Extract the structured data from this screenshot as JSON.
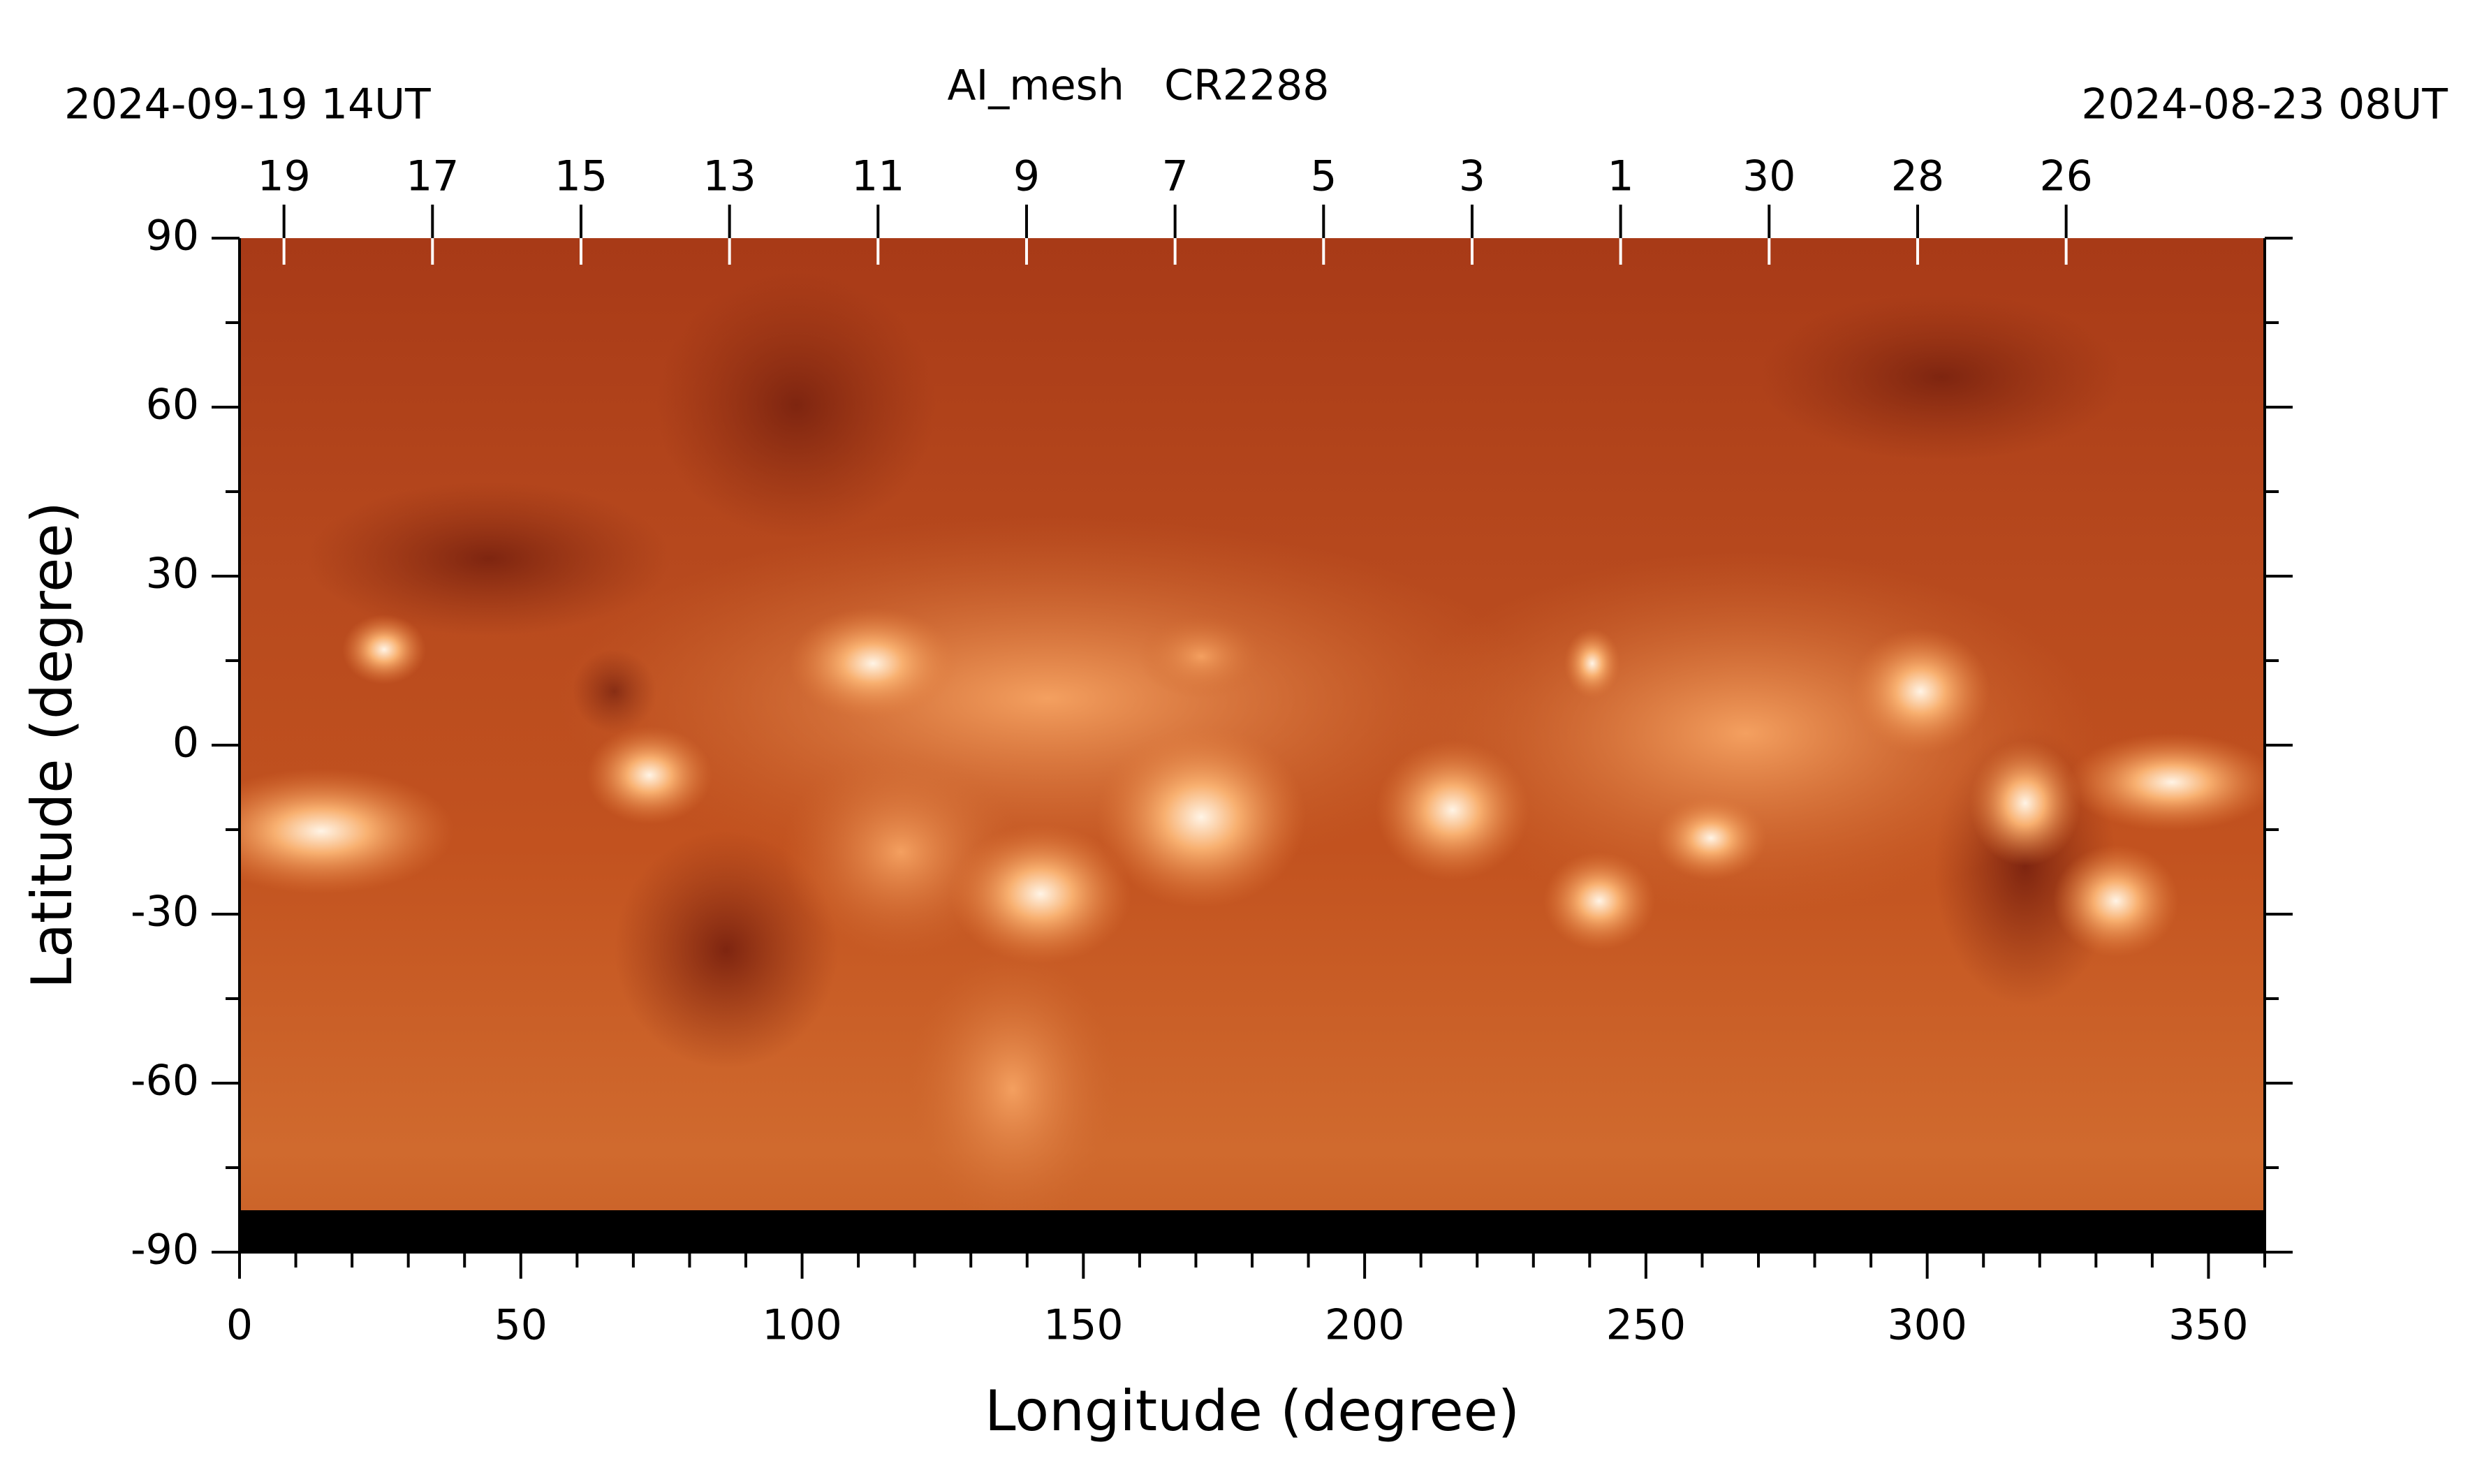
{
  "chart_data": {
    "type": "image",
    "title": "AI_mesh   CR2288",
    "start_label": "2024-09-19 14UT",
    "end_label": "2024-08-23 08UT",
    "xlabel": "Longitude (degree)",
    "ylabel": "Latitude (degree)",
    "xlim": [
      0,
      360
    ],
    "ylim": [
      -90,
      90
    ],
    "xticks": [
      0,
      50,
      100,
      150,
      200,
      250,
      300,
      350
    ],
    "yticks": [
      -90,
      -60,
      -30,
      0,
      30,
      60,
      90
    ],
    "xminorticks": [
      10,
      20,
      30,
      40,
      60,
      70,
      80,
      90,
      110,
      120,
      130,
      140,
      160,
      170,
      180,
      190,
      210,
      220,
      230,
      240,
      260,
      270,
      280,
      290,
      310,
      320,
      330,
      340,
      360
    ],
    "yminorticks": [
      -75,
      -45,
      -15,
      15,
      45,
      75
    ],
    "x2ticks": [
      {
        "value": 7.9,
        "label": "19"
      },
      {
        "value": 34.3,
        "label": "17"
      },
      {
        "value": 60.7,
        "label": "15"
      },
      {
        "value": 87.1,
        "label": "13"
      },
      {
        "value": 113.5,
        "label": "11"
      },
      {
        "value": 139.9,
        "label": "9"
      },
      {
        "value": 166.3,
        "label": "7"
      },
      {
        "value": 192.7,
        "label": "5"
      },
      {
        "value": 219.1,
        "label": "3"
      },
      {
        "value": 245.5,
        "label": "1"
      },
      {
        "value": 271.9,
        "label": "30"
      },
      {
        "value": 298.3,
        "label": "28"
      },
      {
        "value": 324.7,
        "label": "26"
      }
    ]
  }
}
